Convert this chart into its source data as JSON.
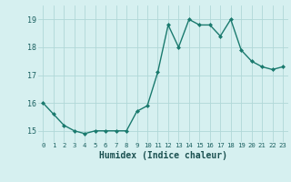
{
  "x": [
    0,
    1,
    2,
    3,
    4,
    5,
    6,
    7,
    8,
    9,
    10,
    11,
    12,
    13,
    14,
    15,
    16,
    17,
    18,
    19,
    20,
    21,
    22,
    23
  ],
  "y": [
    16.0,
    15.6,
    15.2,
    15.0,
    14.9,
    15.0,
    15.0,
    15.0,
    15.0,
    15.7,
    15.9,
    17.1,
    18.8,
    18.0,
    19.0,
    18.8,
    18.8,
    18.4,
    19.0,
    17.9,
    17.5,
    17.3,
    17.2,
    17.3
  ],
  "xlabel": "Humidex (Indice chaleur)",
  "line_color": "#1a7a6e",
  "marker": "D",
  "marker_size": 2.0,
  "bg_color": "#d6f0f0",
  "grid_color": "#b0d8d8",
  "tick_label_color": "#1a6060",
  "xlabel_color": "#1a5050",
  "ylim": [
    14.6,
    19.5
  ],
  "yticks": [
    15,
    16,
    17,
    18,
    19
  ],
  "xticks": [
    0,
    1,
    2,
    3,
    4,
    5,
    6,
    7,
    8,
    9,
    10,
    11,
    12,
    13,
    14,
    15,
    16,
    17,
    18,
    19,
    20,
    21,
    22,
    23
  ],
  "linewidth": 1.0
}
